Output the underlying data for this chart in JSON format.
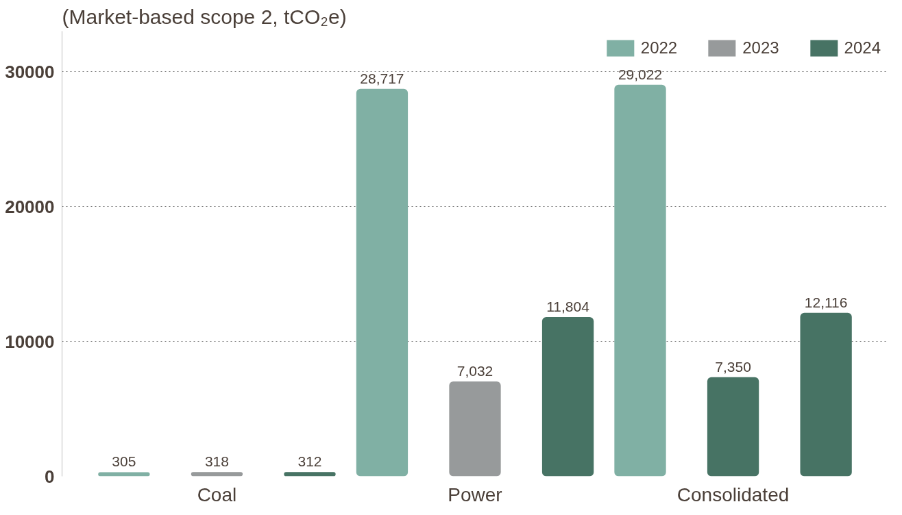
{
  "chart_data": {
    "type": "bar",
    "subtitle": "(Market-based scope 2, tCO₂e)",
    "categories": [
      "Coal",
      "Power",
      "Consolidated"
    ],
    "series": [
      {
        "name": "2022",
        "color": "#80b0a4",
        "values": [
          305,
          28717,
          29022
        ],
        "value_labels": [
          "305",
          "28,717",
          "29,022"
        ]
      },
      {
        "name": "2023",
        "color": "#979a9b",
        "colors": [
          "#979a9b",
          "#979a9b",
          "#477364"
        ],
        "values": [
          318,
          7032,
          7350
        ],
        "value_labels": [
          "318",
          "7,032",
          "7,350"
        ]
      },
      {
        "name": "2024",
        "color": "#477364",
        "values": [
          312,
          11804,
          12116
        ],
        "value_labels": [
          "312",
          "11,804",
          "12,116"
        ]
      }
    ],
    "ylim": [
      0,
      33000
    ],
    "yticks": [
      0,
      10000,
      20000,
      30000
    ],
    "grid": "y",
    "legend": "top right"
  }
}
